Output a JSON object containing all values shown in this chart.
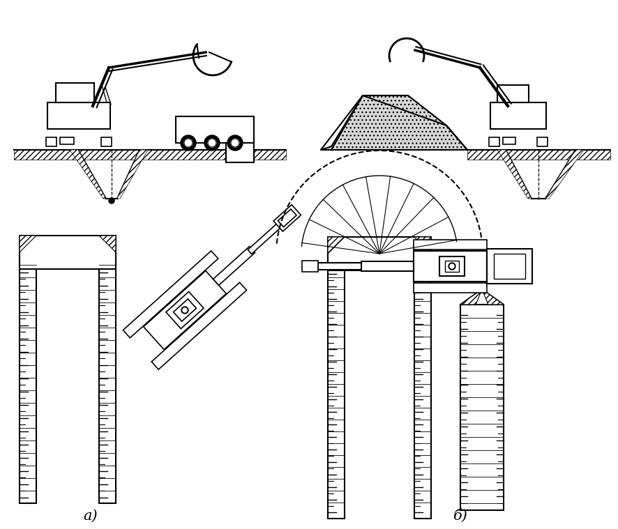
{
  "bg_color": "#ffffff",
  "line_color": "#000000",
  "title_a": "а)",
  "title_b": "б)",
  "fig_width": 8.87,
  "fig_height": 7.59,
  "dpi": 100
}
